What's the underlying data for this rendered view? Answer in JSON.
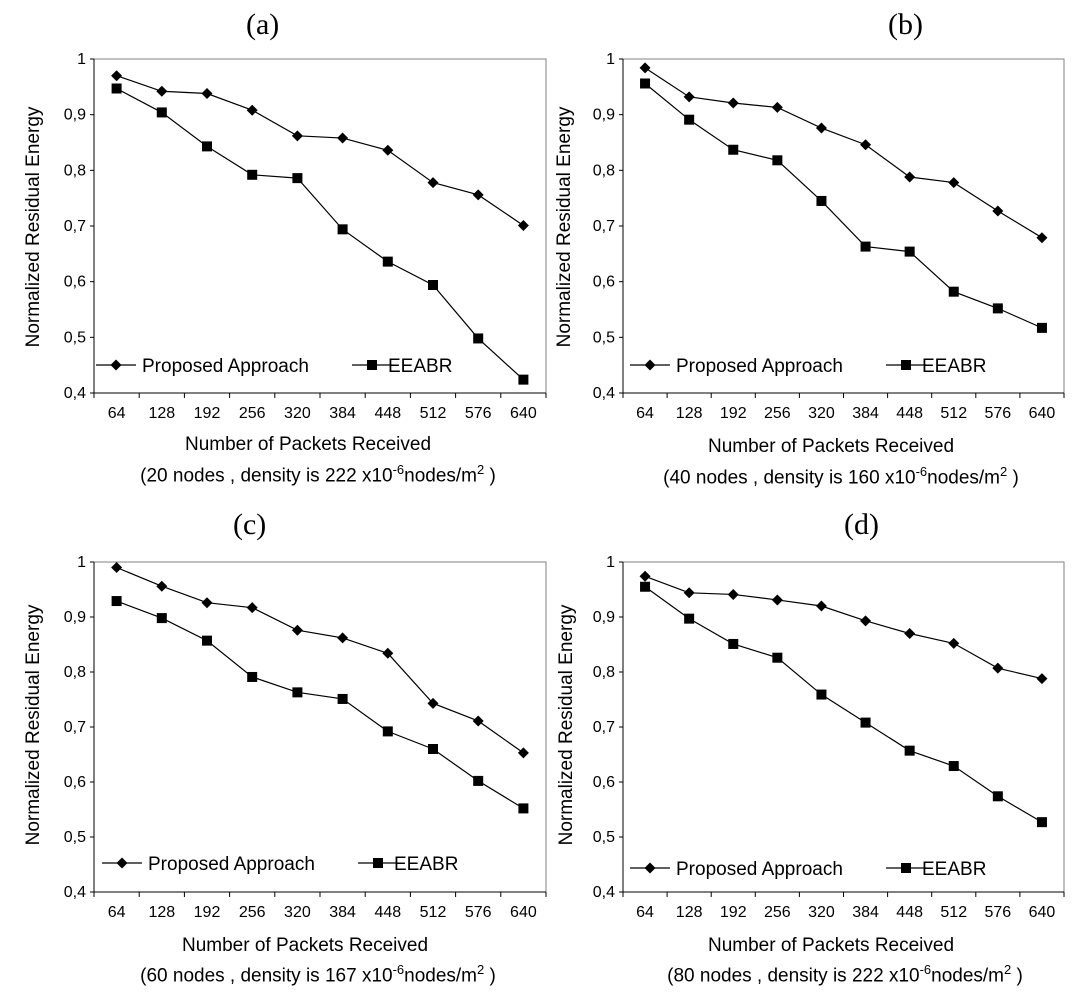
{
  "chart_data": [
    {
      "type": "line",
      "panel_label": "(a)",
      "categories": [
        "64",
        "128",
        "192",
        "256",
        "320",
        "384",
        "448",
        "512",
        "576",
        "640"
      ],
      "series": [
        {
          "name": "Proposed Approach",
          "marker": "diamond",
          "values": [
            0.97,
            0.942,
            0.938,
            0.908,
            0.862,
            0.858,
            0.836,
            0.778,
            0.756,
            0.701
          ]
        },
        {
          "name": "EEABR",
          "marker": "square",
          "values": [
            0.947,
            0.904,
            0.843,
            0.792,
            0.786,
            0.694,
            0.636,
            0.594,
            0.498,
            0.424
          ]
        }
      ],
      "xlabel": "Number of Packets Received",
      "ylabel": "Normalized Residual Energy",
      "ylim": [
        0.4,
        1
      ],
      "yticks": [
        "0,4",
        "0,5",
        "0,6",
        "0,7",
        "0,8",
        "0,9",
        "1"
      ],
      "caption": {
        "prefix": "(20 nodes , density is 222 x10",
        "exp": "-6",
        "mid": "nodes/m",
        "sup2": "2",
        "suffix": " )"
      }
    },
    {
      "type": "line",
      "panel_label": "(b)",
      "categories": [
        "64",
        "128",
        "192",
        "256",
        "320",
        "384",
        "448",
        "512",
        "576",
        "640"
      ],
      "series": [
        {
          "name": "Proposed Approach",
          "marker": "diamond",
          "values": [
            0.984,
            0.932,
            0.921,
            0.913,
            0.876,
            0.846,
            0.788,
            0.778,
            0.727,
            0.679
          ]
        },
        {
          "name": "EEABR",
          "marker": "square",
          "values": [
            0.956,
            0.891,
            0.837,
            0.818,
            0.745,
            0.663,
            0.654,
            0.582,
            0.552,
            0.517
          ]
        }
      ],
      "xlabel": "Number of Packets Received",
      "ylabel": "Normalized Residual Energy",
      "ylim": [
        0.4,
        1
      ],
      "yticks": [
        "0,4",
        "0,5",
        "0,6",
        "0,7",
        "0,8",
        "0,9",
        "1"
      ],
      "caption": {
        "prefix": "(40 nodes , density is 160 x10",
        "exp": "-6",
        "mid": "nodes/m",
        "sup2": "2",
        "suffix": " )"
      }
    },
    {
      "type": "line",
      "panel_label": "(c)",
      "categories": [
        "64",
        "128",
        "192",
        "256",
        "320",
        "384",
        "448",
        "512",
        "576",
        "640"
      ],
      "series": [
        {
          "name": "Proposed Approach",
          "marker": "diamond",
          "values": [
            0.99,
            0.956,
            0.926,
            0.917,
            0.876,
            0.862,
            0.834,
            0.743,
            0.711,
            0.653
          ]
        },
        {
          "name": "EEABR",
          "marker": "square",
          "values": [
            0.929,
            0.898,
            0.857,
            0.791,
            0.763,
            0.751,
            0.692,
            0.66,
            0.602,
            0.552
          ]
        }
      ],
      "xlabel": "Number of Packets Received",
      "ylabel": "Normalized Residual Energy",
      "ylim": [
        0.4,
        1
      ],
      "yticks": [
        "0,4",
        "0,5",
        "0,6",
        "0,7",
        "0,8",
        "0,9",
        "1"
      ],
      "caption": {
        "prefix": "(60 nodes , density is 167 x10",
        "exp": "-6",
        "mid": "nodes/m",
        "sup2": "2",
        "suffix": " )"
      }
    },
    {
      "type": "line",
      "panel_label": "(d)",
      "categories": [
        "64",
        "128",
        "192",
        "256",
        "320",
        "384",
        "448",
        "512",
        "576",
        "640"
      ],
      "series": [
        {
          "name": "Proposed Approach",
          "marker": "diamond",
          "values": [
            0.974,
            0.944,
            0.941,
            0.931,
            0.92,
            0.893,
            0.87,
            0.852,
            0.807,
            0.788
          ]
        },
        {
          "name": "EEABR",
          "marker": "square",
          "values": [
            0.955,
            0.897,
            0.851,
            0.826,
            0.759,
            0.708,
            0.657,
            0.629,
            0.574,
            0.527
          ]
        }
      ],
      "xlabel": "Number of Packets Received",
      "ylabel": "Normalized Residual Energy",
      "ylim": [
        0.4,
        1
      ],
      "yticks": [
        "0,4",
        "0,5",
        "0,6",
        "0,7",
        "0,8",
        "0,9",
        "1"
      ],
      "caption": {
        "prefix": "(80 nodes , density is 222 x10",
        "exp": "-6",
        "mid": "nodes/m",
        "sup2": "2",
        "suffix": " )"
      }
    }
  ]
}
